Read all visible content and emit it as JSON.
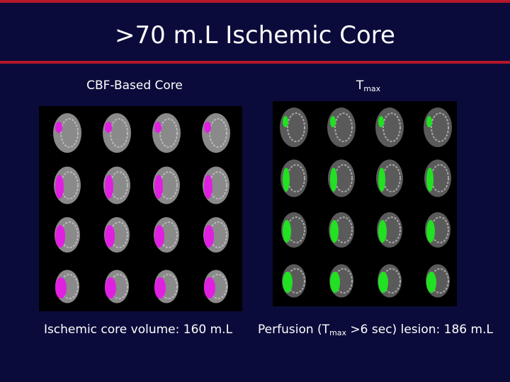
{
  "title": ">70 m.L Ischemic Core",
  "left_panel": {
    "heading": "CBF-Based Core",
    "caption": "Ischemic core volume: 160 m.L"
  },
  "right_panel": {
    "heading": {
      "main": "T",
      "sub": "max"
    },
    "caption": {
      "before": "Perfusion (T",
      "sub": "max",
      "after": " >6 sec) lesion: 186 m.L"
    }
  }
}
